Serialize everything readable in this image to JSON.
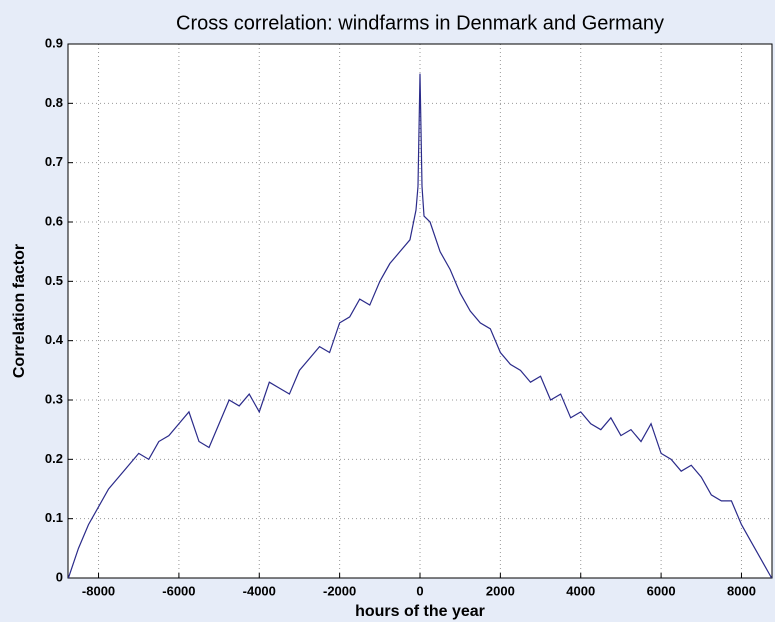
{
  "chart_data": {
    "type": "line",
    "title": "Cross correlation: windfarms in Denmark and Germany",
    "x_label": "hours of the year",
    "y_label": "Correlation factor",
    "x": [
      -8750,
      -8500,
      -8250,
      -8000,
      -7750,
      -7500,
      -7250,
      -7000,
      -6750,
      -6500,
      -6250,
      -6000,
      -5750,
      -5500,
      -5250,
      -5000,
      -4750,
      -4500,
      -4250,
      -4000,
      -3750,
      -3500,
      -3250,
      -3000,
      -2750,
      -2500,
      -2250,
      -2000,
      -1750,
      -1500,
      -1250,
      -1000,
      -750,
      -500,
      -250,
      -100,
      -50,
      0,
      50,
      100,
      250,
      500,
      750,
      1000,
      1250,
      1500,
      1750,
      2000,
      2250,
      2500,
      2750,
      3000,
      3250,
      3500,
      3750,
      4000,
      4250,
      4500,
      4750,
      5000,
      5250,
      5500,
      5750,
      6000,
      6250,
      6500,
      6750,
      7000,
      7250,
      7500,
      7750,
      8000,
      8250,
      8500,
      8750
    ],
    "series": [
      {
        "name": "cross correlation",
        "color": "#2b2b8a",
        "values": [
          0.0,
          0.05,
          0.09,
          0.12,
          0.15,
          0.17,
          0.19,
          0.21,
          0.2,
          0.23,
          0.24,
          0.26,
          0.28,
          0.23,
          0.22,
          0.26,
          0.3,
          0.29,
          0.31,
          0.28,
          0.33,
          0.32,
          0.31,
          0.35,
          0.37,
          0.39,
          0.38,
          0.43,
          0.44,
          0.47,
          0.46,
          0.5,
          0.53,
          0.55,
          0.57,
          0.62,
          0.66,
          0.85,
          0.66,
          0.61,
          0.6,
          0.55,
          0.52,
          0.48,
          0.45,
          0.43,
          0.42,
          0.38,
          0.36,
          0.35,
          0.33,
          0.34,
          0.3,
          0.31,
          0.27,
          0.28,
          0.26,
          0.25,
          0.27,
          0.24,
          0.25,
          0.23,
          0.26,
          0.21,
          0.2,
          0.18,
          0.19,
          0.17,
          0.14,
          0.13,
          0.13,
          0.09,
          0.06,
          0.03,
          0.0
        ]
      }
    ],
    "xlim": [
      -8760,
      8760
    ],
    "ylim": [
      0,
      0.9
    ],
    "xticks": [
      -8000,
      -6000,
      -4000,
      -2000,
      0,
      2000,
      4000,
      6000,
      8000
    ],
    "yticks": [
      0,
      0.1,
      0.2,
      0.3,
      0.4,
      0.5,
      0.6,
      0.7,
      0.8,
      0.9
    ],
    "grid": true
  }
}
